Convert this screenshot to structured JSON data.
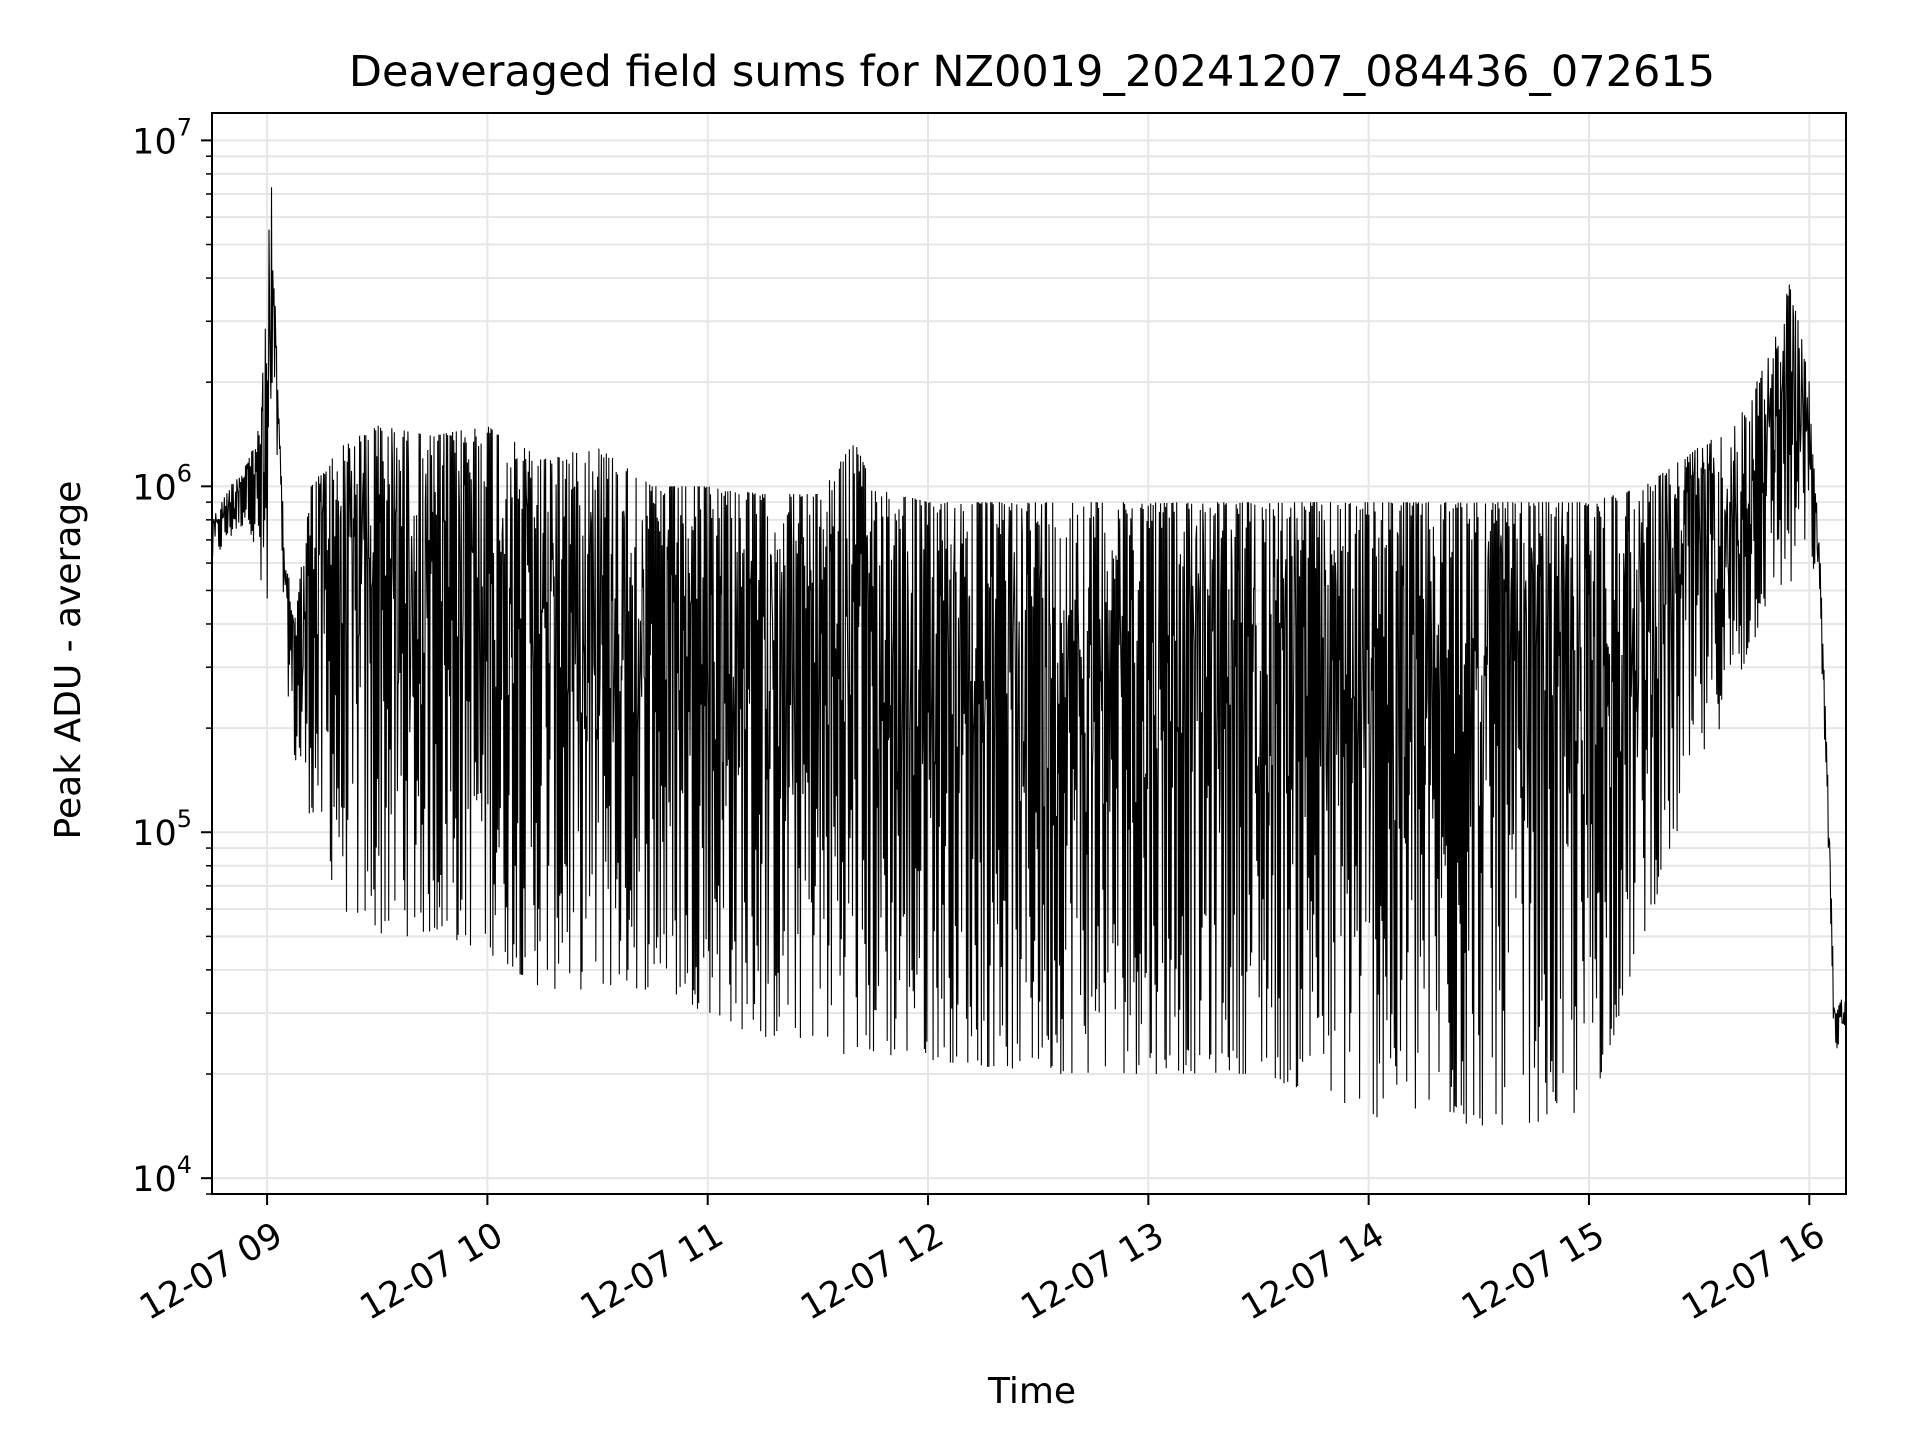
{
  "chart_data": {
    "type": "line",
    "title": "Deaveraged field sums for NZ0019_20241207_084436_072615",
    "xlabel": "Time",
    "ylabel": "Peak ADU - average",
    "x_type": "datetime",
    "y_scale": "log",
    "xlim": [
      "2024-12-07T08:45:00",
      "2024-12-07T16:10:00"
    ],
    "ylim": [
      9000,
      12000000
    ],
    "x_ticks": [
      {
        "value": "2024-12-07T09:00:00",
        "label": "12-07 09"
      },
      {
        "value": "2024-12-07T10:00:00",
        "label": "12-07 10"
      },
      {
        "value": "2024-12-07T11:00:00",
        "label": "12-07 11"
      },
      {
        "value": "2024-12-07T12:00:00",
        "label": "12-07 12"
      },
      {
        "value": "2024-12-07T13:00:00",
        "label": "12-07 13"
      },
      {
        "value": "2024-12-07T14:00:00",
        "label": "12-07 14"
      },
      {
        "value": "2024-12-07T15:00:00",
        "label": "12-07 15"
      },
      {
        "value": "2024-12-07T16:00:00",
        "label": "12-07 16"
      }
    ],
    "y_ticks": [
      {
        "value": 10000,
        "base": "10",
        "exp": "4"
      },
      {
        "value": 100000,
        "base": "10",
        "exp": "5"
      },
      {
        "value": 1000000,
        "base": "10",
        "exp": "6"
      },
      {
        "value": 10000000,
        "base": "10",
        "exp": "7"
      }
    ],
    "grid": {
      "major": true,
      "minor_y": true
    },
    "line_color": "#000000",
    "grid_color": "#e6e6e6",
    "series": [
      {
        "x": [
          "2024-12-07T08:45:00",
          "2024-12-07T08:50:00",
          "2024-12-07T08:55:00",
          "2024-12-07T08:58:00",
          "2024-12-07T09:00:00",
          "2024-12-07T09:01:00",
          "2024-12-07T09:03:00",
          "2024-12-07T09:05:00",
          "2024-12-07T09:08:00",
          "2024-12-07T09:12:00",
          "2024-12-07T09:20:00",
          "2024-12-07T09:30:00",
          "2024-12-07T09:45:00",
          "2024-12-07T10:00:00",
          "2024-12-07T10:15:00",
          "2024-12-07T10:30:00",
          "2024-12-07T10:45:00",
          "2024-12-07T11:00:00",
          "2024-12-07T11:15:00",
          "2024-12-07T11:30:00",
          "2024-12-07T11:40:00",
          "2024-12-07T11:45:00",
          "2024-12-07T12:00:00",
          "2024-12-07T12:30:00",
          "2024-12-07T13:00:00",
          "2024-12-07T13:30:00",
          "2024-12-07T14:00:00",
          "2024-12-07T14:30:00",
          "2024-12-07T15:00:00",
          "2024-12-07T15:15:00",
          "2024-12-07T15:30:00",
          "2024-12-07T15:40:00",
          "2024-12-07T15:50:00",
          "2024-12-07T15:55:00",
          "2024-12-07T16:00:00",
          "2024-12-07T16:03:00",
          "2024-12-07T16:05:00",
          "2024-12-07T16:07:00",
          "2024-12-07T16:10:00"
        ],
        "upper": [
          800000,
          1000000,
          1200000,
          1500000,
          3500000,
          8700000,
          1800000,
          600000,
          450000,
          1000000,
          1300000,
          1500000,
          1400000,
          1500000,
          1200000,
          1300000,
          1000000,
          1000000,
          950000,
          950000,
          1350000,
          1000000,
          900000,
          900000,
          900000,
          900000,
          900000,
          900000,
          900000,
          1000000,
          1300000,
          1500000,
          2500000,
          4000000,
          2000000,
          600000,
          150000,
          30000,
          35000
        ],
        "lower": [
          600000,
          700000,
          800000,
          500000,
          260000,
          900000,
          1200000,
          300000,
          140000,
          110000,
          60000,
          50000,
          50000,
          45000,
          35000,
          35000,
          35000,
          30000,
          25000,
          25000,
          22000,
          22000,
          22000,
          20000,
          20000,
          20000,
          15000,
          14000,
          15000,
          50000,
          150000,
          250000,
          500000,
          500000,
          700000,
          400000,
          100000,
          20000,
          25000
        ]
      }
    ]
  }
}
